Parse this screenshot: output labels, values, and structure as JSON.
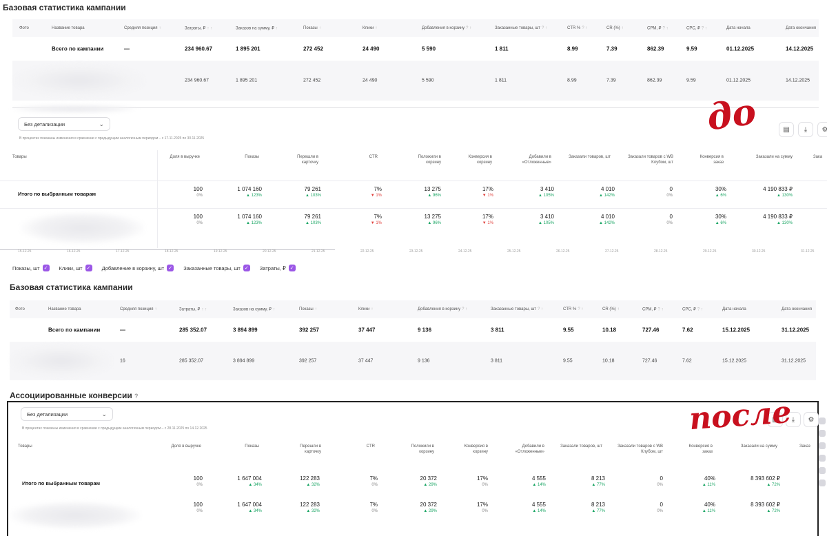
{
  "top_stats": {
    "title": "Базовая статистика кампании",
    "headers": [
      "Фото",
      "Название товара",
      "Средняя позиция",
      "Затраты, ₽",
      "Заказов на сумму, ₽",
      "Показы",
      "Клики",
      "Добавления в корзину",
      "Заказанные товары, шт",
      "CTR %",
      "CR (%)",
      "CPM, ₽",
      "CPC, ₽",
      "Дата начала",
      "Дата окончания"
    ],
    "total": [
      "",
      "Всего по кампании",
      "—",
      "234 960.67",
      "1 895 201",
      "272 452",
      "24 490",
      "5 590",
      "1 811",
      "8.99",
      "7.39",
      "862.39",
      "9.59",
      "01.12.2025",
      "14.12.2025"
    ],
    "item": [
      "",
      "",
      "",
      "234 960.67",
      "1 895 201",
      "272 452",
      "24 490",
      "5 590",
      "1 811",
      "8.99",
      "7.39",
      "862.39",
      "9.59",
      "01.12.2025",
      "14.12.2025"
    ]
  },
  "top_assoc": {
    "dropdown": "Без детализации",
    "note": "В процентах показаны изменения в сравнении с предыдущим аналогичным периодом – с 17.11.2025 по 30.11.2025",
    "headers": [
      "Товары",
      "Доля в выручке",
      "Показы",
      "Перешли в карточку",
      "CTR",
      "Положили в корзину",
      "Конверсия в корзину",
      "Добавили в «Отложенные»",
      "Заказали товаров, шт",
      "Заказали товаров с WB Клубом, шт",
      "Конверсия в заказ",
      "Заказали на сумму",
      "Зака"
    ],
    "total_label": "Итого по выбранным товарам",
    "values": [
      "100",
      "1 074 160",
      "79 261",
      "7%",
      "13 275",
      "17%",
      "3 410",
      "4 010",
      "0",
      "30%",
      "4 190 833 ₽"
    ],
    "deltas": [
      "0%",
      "123%",
      "103%",
      "1%",
      "96%",
      "1%",
      "105%",
      "142%",
      "0%",
      "6%",
      "130%"
    ],
    "delta_dirs": [
      "flat",
      "up",
      "up",
      "down",
      "up",
      "down",
      "up",
      "up",
      "flat",
      "up",
      "up"
    ]
  },
  "dates": [
    "15.12.25",
    "16.12.25",
    "17.12.25",
    "18.12.25",
    "19.12.25",
    "20.12.25",
    "21.12.25",
    "22.12.25",
    "23.12.25",
    "24.12.25",
    "25.12.25",
    "26.12.25",
    "27.12.25",
    "28.12.25",
    "29.12.25",
    "30.12.25",
    "31.12.25"
  ],
  "legend": [
    "Показы, шт",
    "Клики, шт",
    "Добавление в корзину, шт",
    "Заказанные товары, шт",
    "Затраты, ₽"
  ],
  "bottom_stats": {
    "title": "Базовая статистика кампании",
    "headers": [
      "Фото",
      "Название товара",
      "Средняя позиция",
      "Затраты, ₽",
      "Заказов на сумму, ₽",
      "Показы",
      "Клики",
      "Добавления в корзину",
      "Заказанные товары, шт",
      "CTR %",
      "CR (%)",
      "CPM, ₽",
      "CPC, ₽",
      "Дата начала",
      "Дата окончания"
    ],
    "total": [
      "",
      "Всего по кампании",
      "—",
      "285 352.07",
      "3 894 899",
      "392 257",
      "37 447",
      "9 136",
      "3 811",
      "9.55",
      "10.18",
      "727.46",
      "7.62",
      "15.12.2025",
      "31.12.2025"
    ],
    "item": [
      "",
      "",
      "16",
      "285 352.07",
      "3 894 899",
      "392 257",
      "37 447",
      "9 136",
      "3 811",
      "9.55",
      "10.18",
      "727.46",
      "7.62",
      "15.12.2025",
      "31.12.2025"
    ]
  },
  "bottom_assoc": {
    "title": "Ассоциированные конверсии",
    "dropdown": "Без детализации",
    "note": "В процентах показаны изменения в сравнении с предыдущим аналогичным периодом – с 28.11.2025 по 14.12.2025",
    "headers": [
      "Товары",
      "Доля в выручке",
      "Показы",
      "Перешли в карточку",
      "CTR",
      "Положили в корзину",
      "Конверсия в корзину",
      "Добавили в «Отложенные»",
      "Заказали товаров, шт",
      "Заказали товаров с WB Клубом, шт",
      "Конверсия в заказ",
      "Заказали на сумму",
      "Заказ"
    ],
    "total_label": "Итого по выбранным товарам",
    "values": [
      "100",
      "1 647 004",
      "122 283",
      "7%",
      "20 372",
      "17%",
      "4 555",
      "8 213",
      "0",
      "40%",
      "8 393 602 ₽"
    ],
    "deltas": [
      "0%",
      "34%",
      "32%",
      "0%",
      "29%",
      "0%",
      "14%",
      "77%",
      "0%",
      "11%",
      "72%"
    ],
    "delta_dirs": [
      "flat",
      "up",
      "up",
      "flat",
      "up",
      "flat",
      "up",
      "up",
      "flat",
      "up",
      "up"
    ]
  },
  "annotations": {
    "before": "до",
    "after": "после"
  },
  "colors": {
    "up": "#1aa564",
    "down": "#e0413d",
    "accent": "#9b57e6",
    "annotation": "#c8101e"
  }
}
